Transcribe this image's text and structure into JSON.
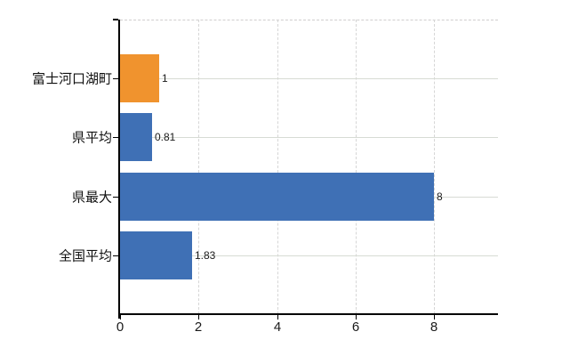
{
  "chart_data": {
    "type": "bar",
    "orientation": "horizontal",
    "title": "",
    "xlabel": "",
    "ylabel": "",
    "legend": "none",
    "grid": "on",
    "categories": [
      "富士河口湖町",
      "県平均",
      "県最大",
      "全国平均"
    ],
    "values": [
      1,
      0.81,
      8,
      1.83
    ],
    "value_labels": [
      "1",
      "0.81",
      "8",
      "1.83"
    ],
    "bar_colors": [
      "#f0932e",
      "#3f70b5",
      "#3f70b5",
      "#3f70b5"
    ],
    "highlight_color": "#f0932e",
    "base_color": "#3f70b5",
    "xticks": [
      0,
      2,
      4,
      6,
      8
    ],
    "xtick_labels": [
      "0",
      "2",
      "4",
      "6",
      "8"
    ],
    "xlim": [
      0,
      9.63
    ],
    "gridline_color": "#d7d7d7",
    "axis_color": "#000000",
    "background_color": "#ffffff"
  }
}
